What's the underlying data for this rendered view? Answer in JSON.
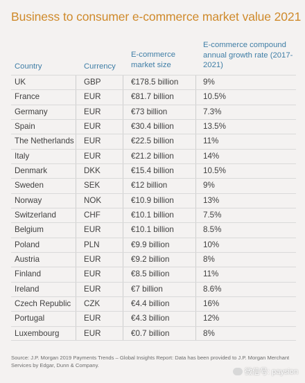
{
  "chart_data": {
    "type": "table",
    "title": "Business to consumer e-commerce market value 2021",
    "columns": [
      "Country",
      "Currency",
      "E-commerce market size",
      "E-commerce compound annual growth rate (2017-2021)"
    ],
    "rows": [
      {
        "country": "UK",
        "currency": "GBP",
        "size": "€178.5 billion",
        "growth": "9%"
      },
      {
        "country": "France",
        "currency": "EUR",
        "size": "€81.7 billion",
        "growth": "10.5%"
      },
      {
        "country": "Germany",
        "currency": "EUR",
        "size": "€73 billion",
        "growth": "7.3%"
      },
      {
        "country": "Spain",
        "currency": "EUR",
        "size": "€30.4 billion",
        "growth": "13.5%"
      },
      {
        "country": "The Netherlands",
        "currency": "EUR",
        "size": "€22.5 billion",
        "growth": "11%"
      },
      {
        "country": "Italy",
        "currency": "EUR",
        "size": "€21.2 billion",
        "growth": "14%"
      },
      {
        "country": "Denmark",
        "currency": "DKK",
        "size": "€15.4 billion",
        "growth": "10.5%"
      },
      {
        "country": "Sweden",
        "currency": "SEK",
        "size": "€12 billion",
        "growth": "9%"
      },
      {
        "country": "Norway",
        "currency": "NOK",
        "size": "€10.9 billion",
        "growth": "13%"
      },
      {
        "country": "Switzerland",
        "currency": "CHF",
        "size": "€10.1 billion",
        "growth": "7.5%"
      },
      {
        "country": "Belgium",
        "currency": "EUR",
        "size": "€10.1 billion",
        "growth": "8.5%"
      },
      {
        "country": "Poland",
        "currency": "PLN",
        "size": "€9.9 billion",
        "growth": "10%"
      },
      {
        "country": "Austria",
        "currency": "EUR",
        "size": "€9.2 billion",
        "growth": "8%"
      },
      {
        "country": "Finland",
        "currency": "EUR",
        "size": "€8.5 billion",
        "growth": "11%"
      },
      {
        "country": "Ireland",
        "currency": "EUR",
        "size": "€7 billion",
        "growth": "8.6%"
      },
      {
        "country": "Czech Republic",
        "currency": "CZK",
        "size": "€4.4 billion",
        "growth": "16%"
      },
      {
        "country": "Portugal",
        "currency": "EUR",
        "size": "€4.3 billion",
        "growth": "12%"
      },
      {
        "country": "Luxembourg",
        "currency": "EUR",
        "size": "€0.7 billion",
        "growth": "8%"
      }
    ],
    "source": "Source: J.P. Morgan 2019 Payments Trends – Global Insights Report: Data has been provided to J.P. Morgan Merchant Services by Edgar, Dunn & Company.",
    "title_color": "#cf8a2b",
    "header_color": "#3f7ea6"
  },
  "watermark": "微信号: paysion"
}
